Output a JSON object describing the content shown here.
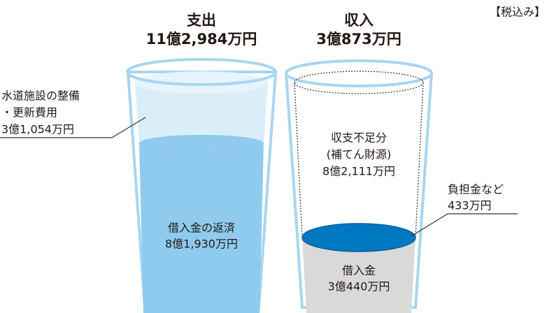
{
  "note": "【税込み】",
  "expense": {
    "title": "支出",
    "total": "11億2,984万円",
    "items": [
      {
        "lines": [
          "水道施設の整備",
          "・更新費用",
          "3億1,054万円"
        ]
      },
      {
        "lines": [
          "借入金の返済",
          "8億1,930万円"
        ]
      }
    ]
  },
  "income": {
    "title": "収入",
    "total": "3億873万円",
    "items": [
      {
        "lines": [
          "収支不足分",
          "(補てん財源)",
          "8億2,111万円"
        ]
      },
      {
        "lines": [
          "負担金など",
          "433万円"
        ]
      },
      {
        "lines": [
          "借入金",
          "3億440万円"
        ]
      }
    ]
  }
}
